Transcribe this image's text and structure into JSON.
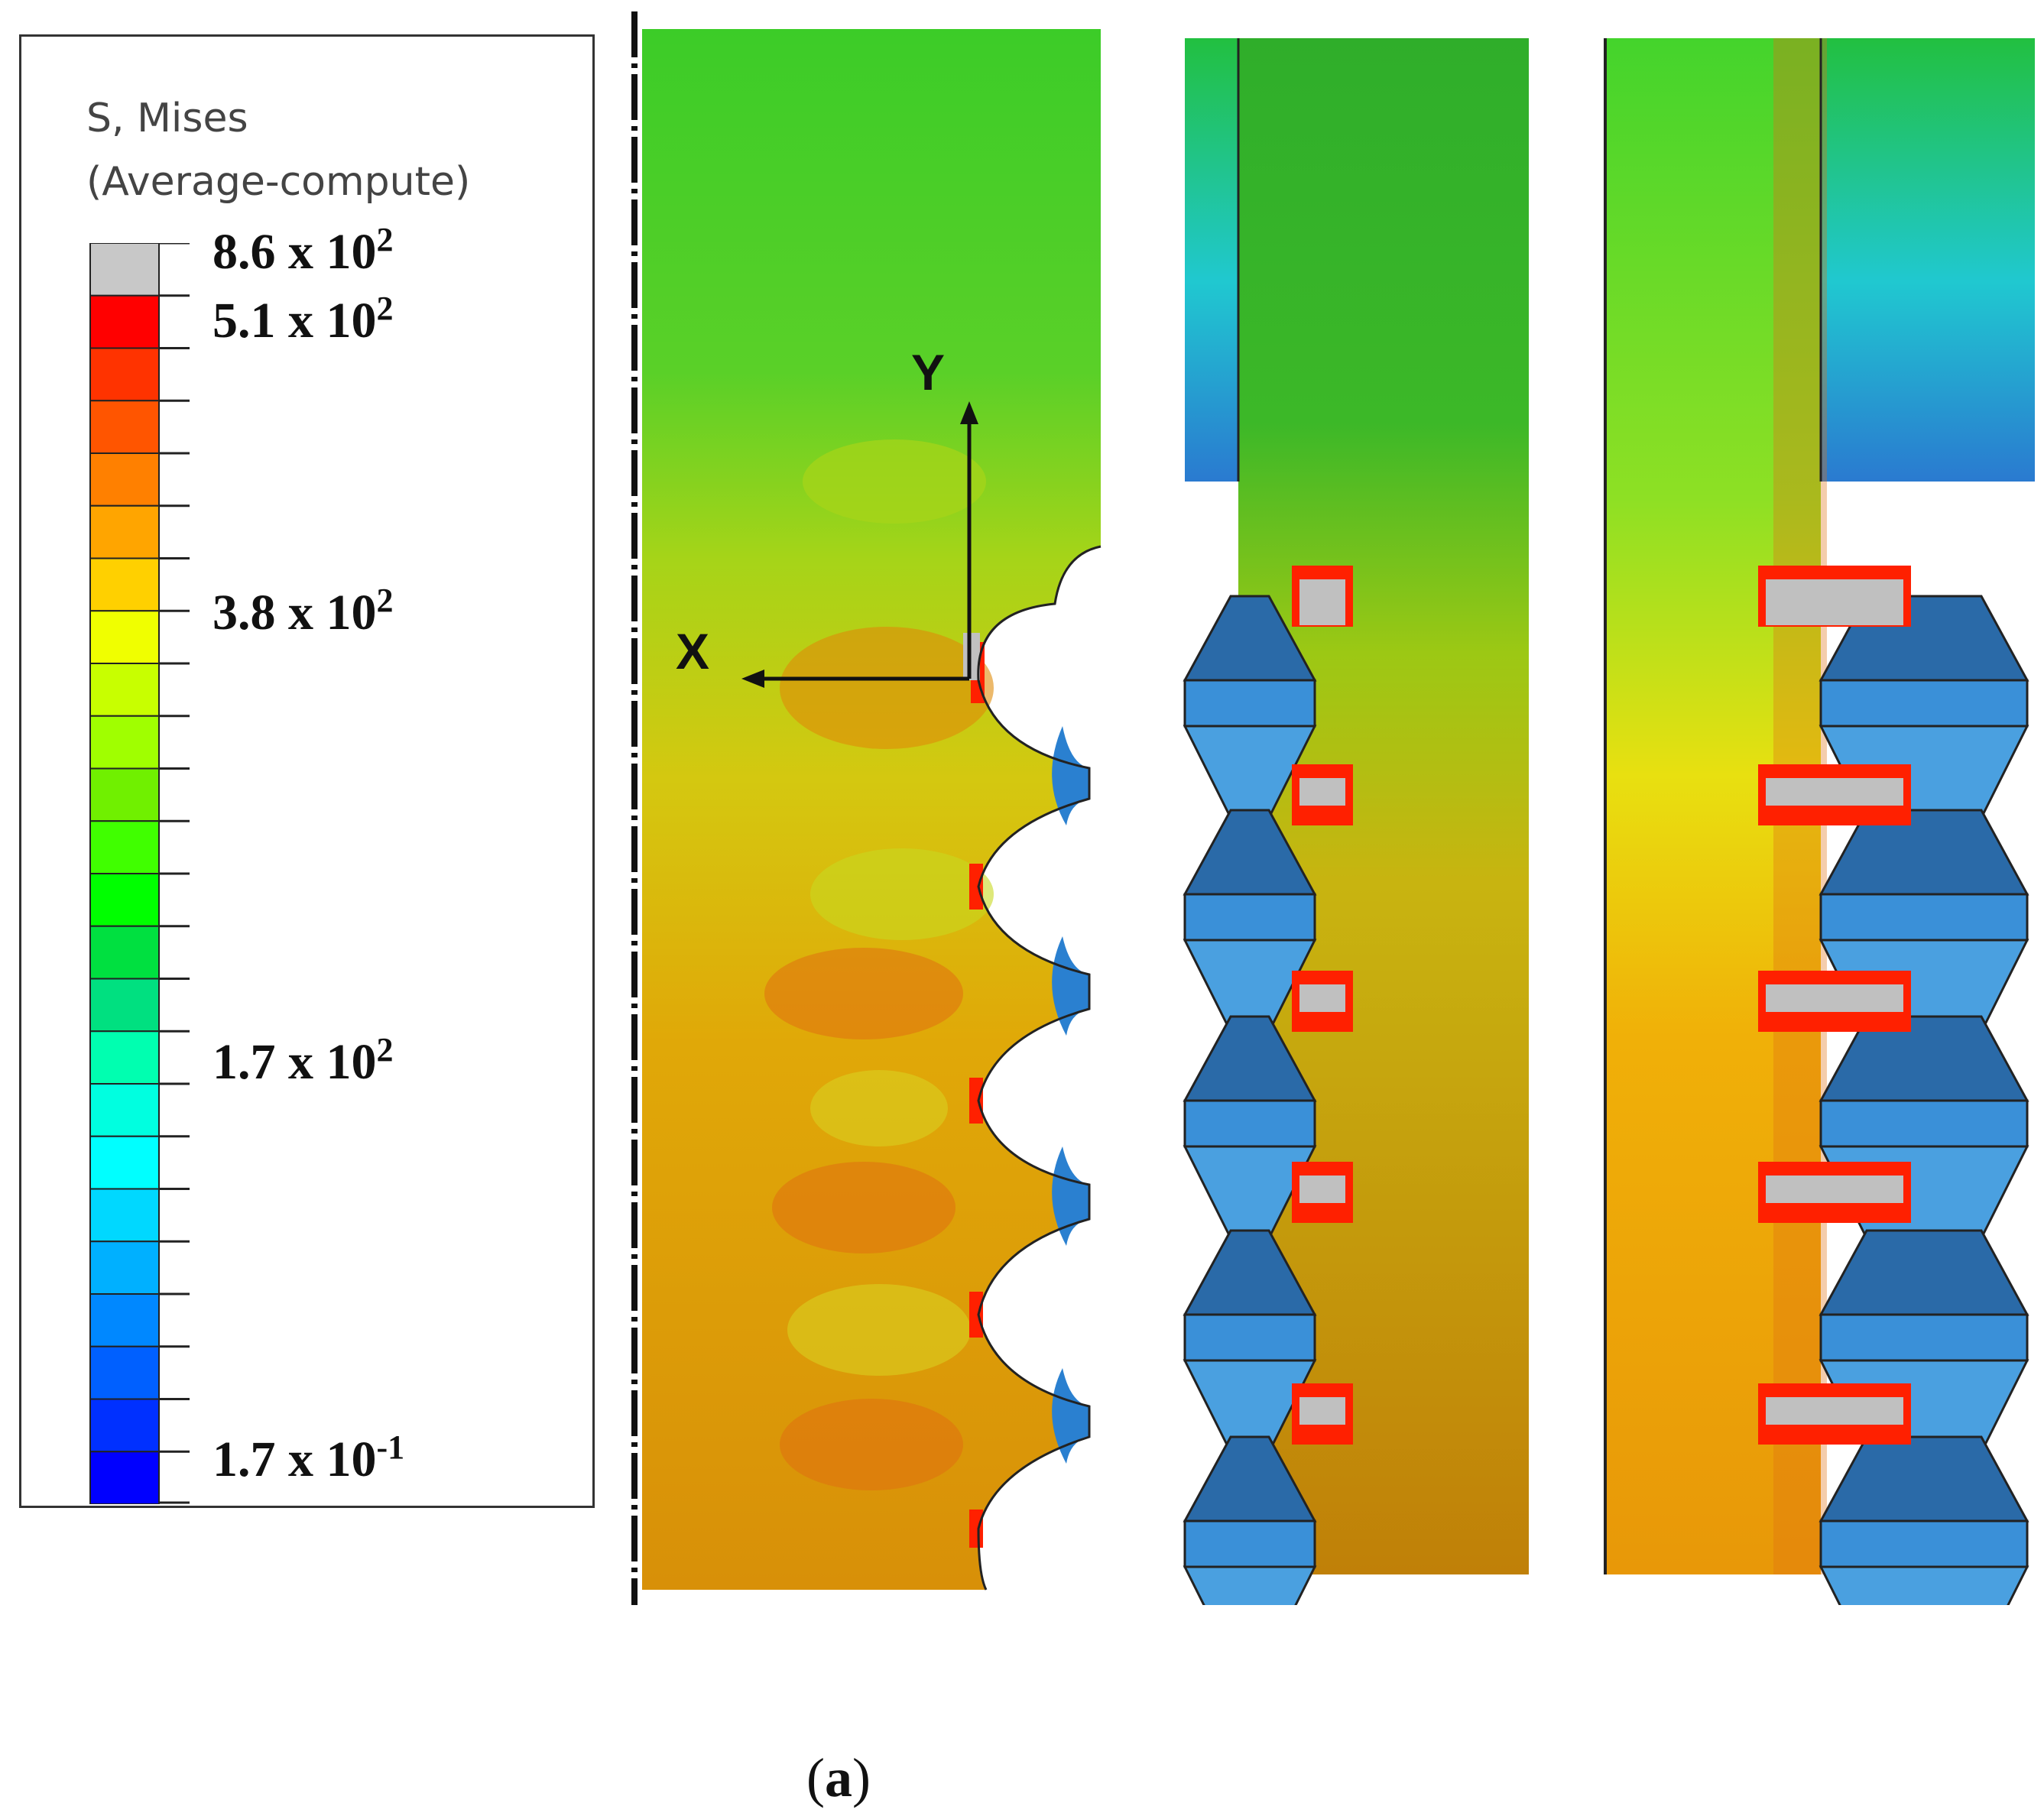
{
  "legend": {
    "title_line1": "S, Mises",
    "title_line2": "(Average-compute)",
    "labels": [
      {
        "mantissa": "8.6 x 10",
        "exp": "2"
      },
      {
        "mantissa": "5.1 x 10",
        "exp": "2"
      },
      {
        "mantissa": "3.8 x 10",
        "exp": "2"
      },
      {
        "mantissa": "1.7 x 10",
        "exp": "2"
      },
      {
        "mantissa": "1.7 x 10",
        "exp": "-1"
      }
    ],
    "colors": [
      "#c8c8c8",
      "#ff0000",
      "#ff3300",
      "#ff5500",
      "#ff8000",
      "#ffa500",
      "#ffd000",
      "#f0ff00",
      "#c8ff00",
      "#a0ff00",
      "#70f000",
      "#40ff00",
      "#00ff00",
      "#00e040",
      "#00e080",
      "#00ffb0",
      "#00ffe0",
      "#00ffff",
      "#00d8ff",
      "#00b0ff",
      "#0088ff",
      "#0060ff",
      "#0030ff",
      "#0000ff"
    ]
  },
  "axes": {
    "x_label": "X",
    "y_label": "Y"
  },
  "caption": {
    "letter": "a"
  },
  "stress_colors": {
    "green": "#3cd028",
    "dark_green": "#2ba82a",
    "yellow_green": "#b8d818",
    "orange": "#e49a08",
    "dark_orange": "#c8860a",
    "red": "#ff2000",
    "blue": "#3a90d8",
    "dark_blue": "#2a6aa8",
    "grey": "#c0c0c0"
  }
}
